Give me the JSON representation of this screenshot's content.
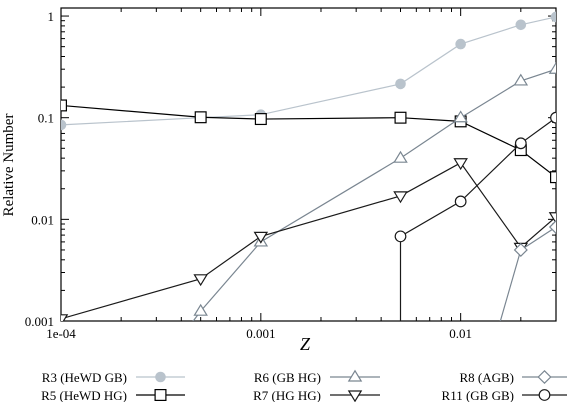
{
  "chart_data": {
    "type": "line",
    "title": "",
    "xlabel": "Z",
    "ylabel": "Relative Number",
    "xscale": "log",
    "yscale": "log",
    "xlim": [
      0.0001,
      0.03
    ],
    "ylim": [
      0.001,
      1.2
    ],
    "x_ticks": [
      {
        "value": 0.0001,
        "label": "1e-04"
      },
      {
        "value": 0.001,
        "label": "0.001"
      },
      {
        "value": 0.01,
        "label": "0.01"
      }
    ],
    "y_ticks": [
      {
        "value": 0.001,
        "label": "0.001"
      },
      {
        "value": 0.01,
        "label": "0.01"
      },
      {
        "value": 0.1,
        "label": "0.1"
      },
      {
        "value": 1,
        "label": "1"
      }
    ],
    "grid": false,
    "legend_position": "bottom",
    "series": [
      {
        "name": "R3 (HeWD GB)",
        "marker": "filled-circle",
        "color": "#b9c3cc",
        "points": [
          [
            0.0001,
            0.085
          ],
          [
            0.0005,
            0.1
          ],
          [
            0.001,
            0.107
          ],
          [
            0.005,
            0.215
          ],
          [
            0.01,
            0.53
          ],
          [
            0.02,
            0.82
          ],
          [
            0.03,
            0.98
          ]
        ]
      },
      {
        "name": "R5 (HeWD HG)",
        "marker": "open-square",
        "color": "#000000",
        "points": [
          [
            0.0001,
            0.132
          ],
          [
            0.0005,
            0.101
          ],
          [
            0.001,
            0.097
          ],
          [
            0.005,
            0.1
          ],
          [
            0.01,
            0.092
          ],
          [
            0.02,
            0.048
          ],
          [
            0.03,
            0.026
          ]
        ]
      },
      {
        "name": "R6 (GB HG)",
        "marker": "open-triangle-up",
        "color": "#7a8691",
        "points": [
          [
            0.0004,
            0.0007
          ],
          [
            0.0005,
            0.00125
          ],
          [
            0.001,
            0.006
          ],
          [
            0.005,
            0.04
          ],
          [
            0.01,
            0.1
          ],
          [
            0.02,
            0.23
          ],
          [
            0.03,
            0.3
          ]
        ]
      },
      {
        "name": "R7 (HG HG)",
        "marker": "open-triangle-down",
        "color": "#1a1a1a",
        "points": [
          [
            0.0001,
            0.00105
          ],
          [
            0.0005,
            0.0026
          ],
          [
            0.001,
            0.0068
          ],
          [
            0.005,
            0.017
          ],
          [
            0.01,
            0.036
          ],
          [
            0.02,
            0.0053
          ],
          [
            0.03,
            0.0106
          ]
        ]
      },
      {
        "name": "R8 (AGB)",
        "marker": "open-diamond",
        "color": "#7a8691",
        "points": [
          [
            0.015,
            0.0007
          ],
          [
            0.02,
            0.005
          ],
          [
            0.03,
            0.0084
          ]
        ]
      },
      {
        "name": "R11 (GB GB)",
        "marker": "open-circle",
        "color": "#1a1a1a",
        "points": [
          [
            0.005,
            0.0007
          ],
          [
            0.005,
            0.0068
          ],
          [
            0.01,
            0.015
          ],
          [
            0.02,
            0.056
          ],
          [
            0.03,
            0.1
          ]
        ]
      }
    ]
  }
}
